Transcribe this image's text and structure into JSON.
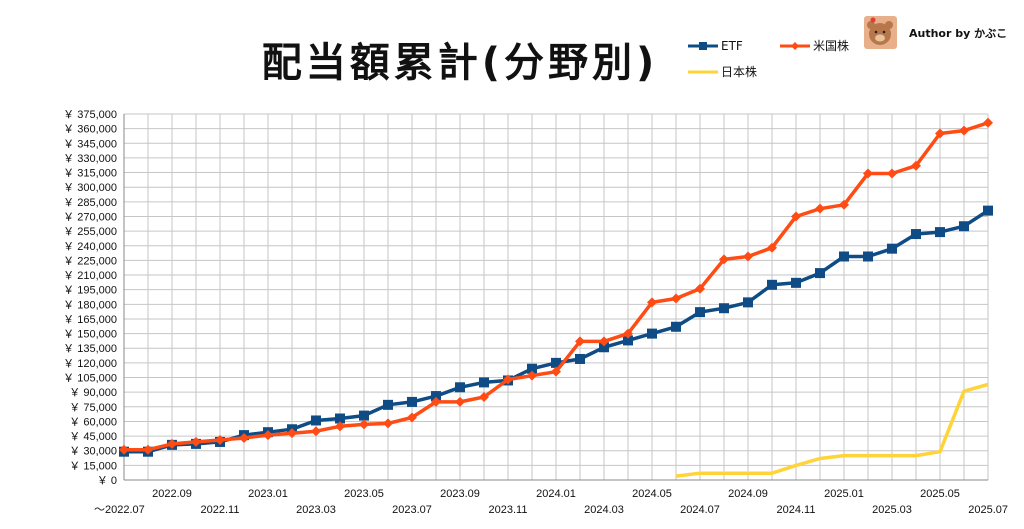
{
  "author": {
    "label": "Author by かぶこ"
  },
  "chart_data": {
    "type": "line",
    "title": "配当額累計(分野別)",
    "xlabel": "",
    "ylabel": "",
    "ylim": [
      0,
      375000
    ],
    "y_tick_step": 15000,
    "y_tick_prefix": "￥",
    "grid": true,
    "legend_position": "top-right",
    "categories": [
      "2022.07",
      "2022.08",
      "2022.09",
      "2022.10",
      "2022.11",
      "2022.12",
      "2023.01",
      "2023.02",
      "2023.03",
      "2023.04",
      "2023.05",
      "2023.06",
      "2023.07",
      "2023.08",
      "2023.09",
      "2023.10",
      "2023.11",
      "2023.12",
      "2024.01",
      "2024.02",
      "2024.03",
      "2024.04",
      "2024.05",
      "2024.06",
      "2024.07",
      "2024.08",
      "2024.09",
      "2024.10",
      "2024.11",
      "2024.12",
      "2025.01",
      "2025.02",
      "2025.03",
      "2025.04",
      "2025.05",
      "2025.06",
      "2025.07"
    ],
    "x_tick_labels_upper": [
      "2022.09",
      "2023.01",
      "2023.05",
      "2023.09",
      "2024.01",
      "2024.05",
      "2024.09",
      "2025.01",
      "2025.05"
    ],
    "x_tick_labels_lower": [
      "～2022.07",
      "2022.11",
      "2023.03",
      "2023.07",
      "2023.11",
      "2024.03",
      "2024.07",
      "2024.11",
      "2025.03",
      "2025.07"
    ],
    "series": [
      {
        "name": "ETF",
        "color": "#0f4c86",
        "marker": "square",
        "values": [
          29000,
          29000,
          36000,
          37000,
          39000,
          46000,
          49000,
          52000,
          61000,
          63000,
          66000,
          77000,
          80000,
          86000,
          95000,
          100000,
          102000,
          114000,
          120000,
          124000,
          136000,
          143000,
          150000,
          157000,
          172000,
          176000,
          182000,
          200000,
          202000,
          212000,
          229000,
          229000,
          237000,
          252000,
          254000,
          260000,
          276000
        ]
      },
      {
        "name": "米国株",
        "color": "#ff4c14",
        "marker": "diamond",
        "values": [
          31000,
          31000,
          37000,
          39000,
          41000,
          43000,
          46000,
          48000,
          50000,
          55000,
          57000,
          58000,
          64000,
          80000,
          80000,
          85000,
          103000,
          107000,
          111000,
          142000,
          142000,
          150000,
          182000,
          186000,
          196000,
          226000,
          229000,
          238000,
          270000,
          278000,
          282000,
          314000,
          314000,
          322000,
          355000,
          358000,
          366000
        ]
      },
      {
        "name": "日本株",
        "color": "#ffd33a",
        "marker": "none",
        "values": [
          null,
          null,
          null,
          null,
          null,
          null,
          null,
          null,
          null,
          null,
          null,
          null,
          null,
          null,
          null,
          null,
          null,
          null,
          null,
          null,
          null,
          null,
          null,
          4000,
          7000,
          7000,
          7000,
          7000,
          15000,
          22000,
          25000,
          25000,
          25000,
          25000,
          29000,
          91000,
          98000
        ]
      }
    ]
  }
}
